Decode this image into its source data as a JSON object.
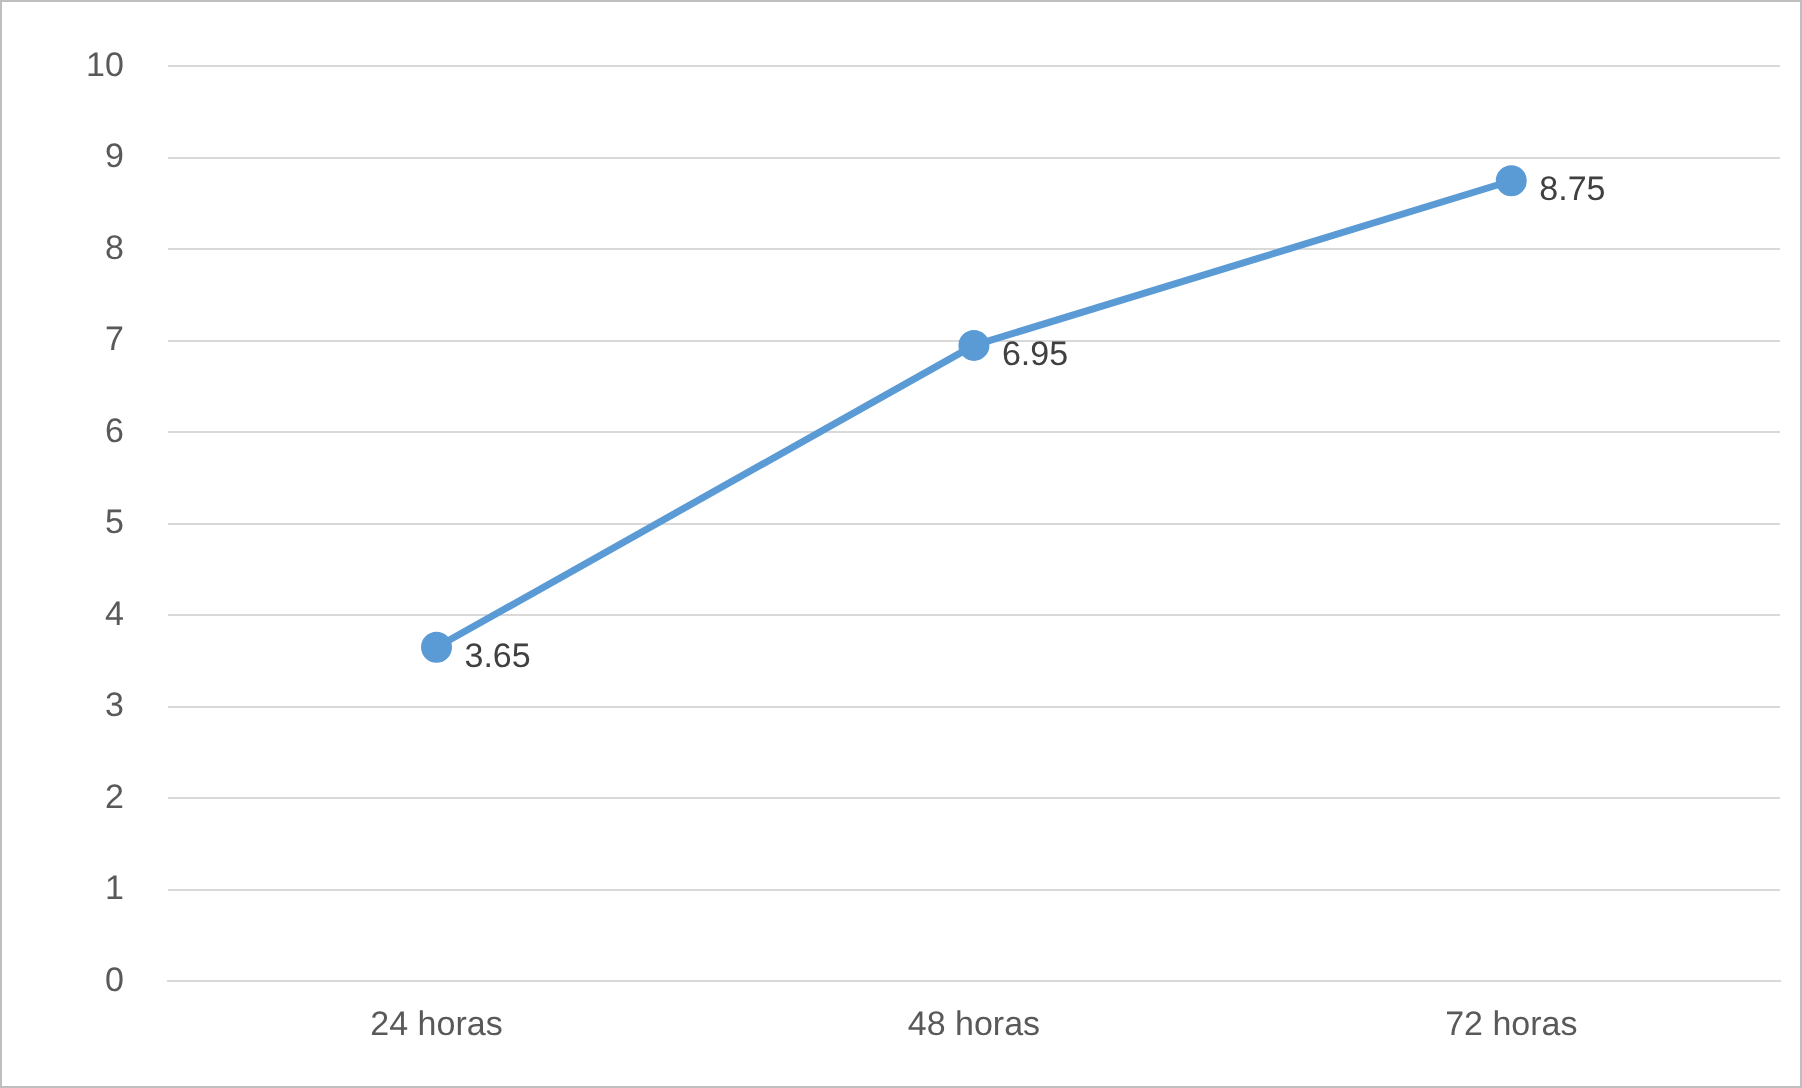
{
  "chart_data": {
    "type": "line",
    "categories": [
      "24 horas",
      "48 horas",
      "72 horas"
    ],
    "series": [
      {
        "color": "#5b9bd5",
        "values": [
          3.65,
          6.95,
          8.75
        ]
      }
    ],
    "ylim": [
      0,
      10
    ],
    "yticks": [
      0,
      1,
      2,
      3,
      4,
      5,
      6,
      7,
      8,
      9,
      10
    ],
    "grid": "y",
    "legend": false,
    "marker": "circle",
    "line_style": "solid",
    "data_labels": true
  }
}
